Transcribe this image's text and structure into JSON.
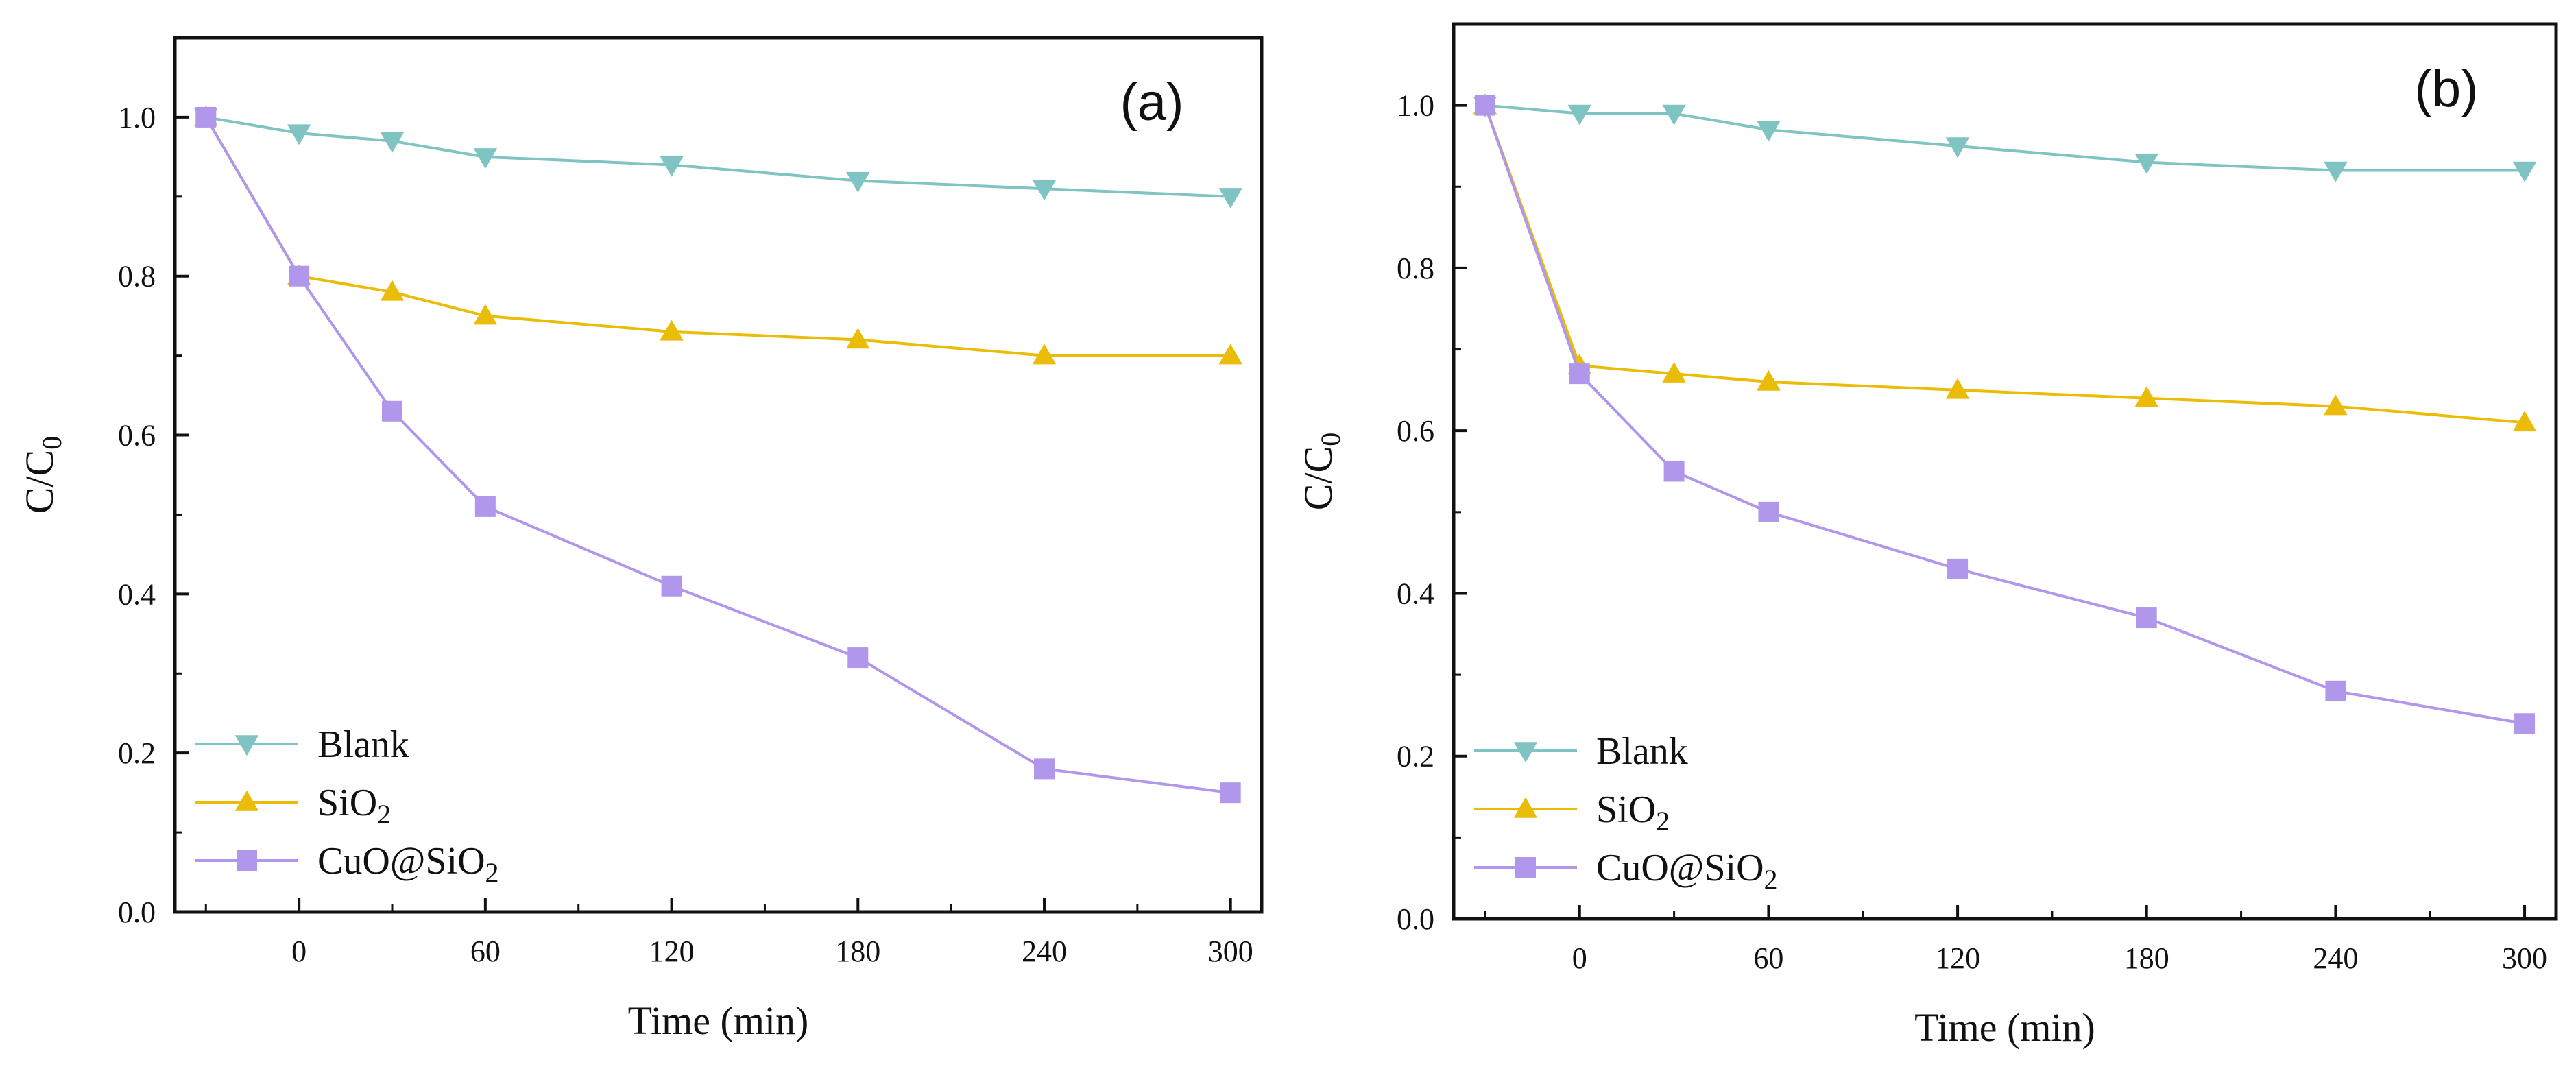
{
  "chart_data": [
    {
      "type": "line",
      "panel_label": "(a)",
      "xlabel": "Time (min)",
      "ylabel": {
        "main": "C/C",
        "sub": "0"
      },
      "x": [
        -30,
        0,
        30,
        60,
        120,
        180,
        240,
        300
      ],
      "x_ticks": [
        "0",
        "60",
        "120",
        "180",
        "240",
        "300"
      ],
      "y_ticks": [
        "0.0",
        "0.2",
        "0.4",
        "0.6",
        "0.8",
        "1.0"
      ],
      "xlim": [
        -40,
        310
      ],
      "ylim": [
        0,
        1.1
      ],
      "legend_position": "bottom-left",
      "series": [
        {
          "name": "Blank",
          "label": {
            "main": "Blank",
            "sub": "",
            "tail": ""
          },
          "marker": "triangle-down",
          "color": "#7fc4c2",
          "values": [
            1.0,
            0.98,
            0.97,
            0.95,
            0.94,
            0.92,
            0.91,
            0.9
          ]
        },
        {
          "name": "SiO2",
          "label": {
            "main": "SiO",
            "sub": "2",
            "tail": ""
          },
          "marker": "triangle-up",
          "color": "#ebbc06",
          "values": [
            1.0,
            0.8,
            0.78,
            0.75,
            0.73,
            0.72,
            0.7,
            0.7
          ]
        },
        {
          "name": "CuO@SiO2",
          "label": {
            "main": "CuO@SiO",
            "sub": "2",
            "tail": ""
          },
          "marker": "square",
          "color": "#b197ec",
          "values": [
            1.0,
            0.8,
            0.63,
            0.51,
            0.41,
            0.32,
            0.18,
            0.15
          ]
        }
      ]
    },
    {
      "type": "line",
      "panel_label": "(b)",
      "xlabel": "Time (min)",
      "ylabel": {
        "main": "C/C",
        "sub": "0"
      },
      "x": [
        -30,
        0,
        30,
        60,
        120,
        180,
        240,
        300
      ],
      "x_ticks": [
        "0",
        "60",
        "120",
        "180",
        "240",
        "300"
      ],
      "y_ticks": [
        "0.0",
        "0.2",
        "0.4",
        "0.6",
        "0.8",
        "1.0"
      ],
      "xlim": [
        -40,
        310
      ],
      "ylim": [
        0,
        1.1
      ],
      "legend_position": "bottom-left",
      "series": [
        {
          "name": "Blank",
          "label": {
            "main": "Blank",
            "sub": "",
            "tail": ""
          },
          "marker": "triangle-down",
          "color": "#7fc4c2",
          "values": [
            1.0,
            0.99,
            0.99,
            0.97,
            0.95,
            0.93,
            0.92,
            0.92
          ]
        },
        {
          "name": "SiO2",
          "label": {
            "main": "SiO",
            "sub": "2",
            "tail": ""
          },
          "marker": "triangle-up",
          "color": "#ebbc06",
          "values": [
            1.0,
            0.68,
            0.67,
            0.66,
            0.65,
            0.64,
            0.63,
            0.61
          ]
        },
        {
          "name": "CuO@SiO2",
          "label": {
            "main": "CuO@SiO",
            "sub": "2",
            "tail": ""
          },
          "marker": "square",
          "color": "#b197ec",
          "values": [
            1.0,
            0.67,
            0.55,
            0.5,
            0.43,
            0.37,
            0.28,
            0.24
          ]
        }
      ]
    }
  ]
}
